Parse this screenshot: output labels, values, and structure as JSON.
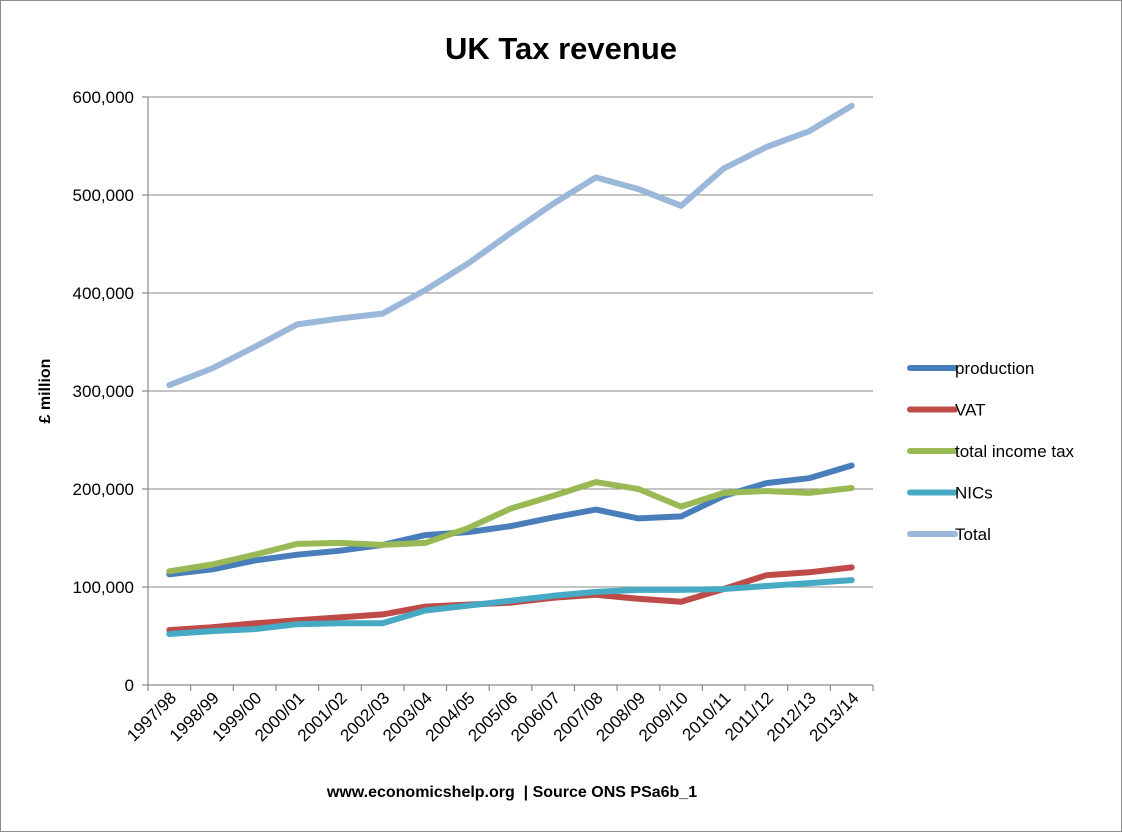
{
  "chart_data": {
    "type": "line",
    "title": "UK Tax revenue",
    "xlabel": "www.economicshelp.org  | Source ONS PSa6b_1",
    "ylabel": "£ million",
    "ylim": [
      0,
      600000
    ],
    "yticks": [
      0,
      100000,
      200000,
      300000,
      400000,
      500000,
      600000
    ],
    "ytick_labels": [
      "0",
      "100,000",
      "200,000",
      "300,000",
      "400,000",
      "500,000",
      "600,000"
    ],
    "grid": true,
    "legend_position": "right",
    "categories": [
      "1997/98",
      "1998/99",
      "1999/00",
      "2000/01",
      "2001/02",
      "2002/03",
      "2003/04",
      "2004/05",
      "2005/06",
      "2006/07",
      "2007/08",
      "2008/09",
      "2009/10",
      "2010/11",
      "2011/12",
      "2012/13",
      "2013/14"
    ],
    "series": [
      {
        "name": "production",
        "color": "#4a7ebb",
        "values": [
          113000,
          118000,
          127000,
          133000,
          137000,
          143000,
          153000,
          156000,
          162000,
          171000,
          179000,
          170000,
          172000,
          193000,
          206000,
          211000,
          224000
        ]
      },
      {
        "name": "VAT",
        "color": "#be4b48",
        "values": [
          56000,
          59000,
          63000,
          66000,
          69000,
          72000,
          80000,
          82000,
          84000,
          89000,
          92000,
          88000,
          85000,
          98000,
          112000,
          115000,
          120000
        ]
      },
      {
        "name": "total income tax",
        "color": "#98b954",
        "values": [
          116000,
          123000,
          133000,
          144000,
          145000,
          143000,
          145000,
          160000,
          180000,
          193000,
          207000,
          200000,
          182000,
          196000,
          198000,
          196000,
          201000
        ]
      },
      {
        "name": "NICs",
        "color": "#46aac5",
        "values": [
          52000,
          55000,
          57000,
          62000,
          63000,
          63000,
          76000,
          81000,
          86000,
          91000,
          95000,
          97000,
          97000,
          98000,
          101000,
          104000,
          107000
        ]
      },
      {
        "name": "Total",
        "color": "#9bb7d9",
        "values": [
          306000,
          323000,
          345000,
          368000,
          374000,
          379000,
          403000,
          430000,
          461000,
          491000,
          518000,
          506000,
          489000,
          527000,
          549000,
          565000,
          591000
        ]
      }
    ]
  }
}
